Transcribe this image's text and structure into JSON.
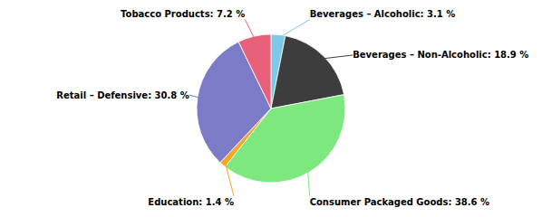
{
  "chart_data": {
    "type": "pie",
    "categories": [
      "Beverages – Alcoholic: 3.1 %",
      "Beverages – Non-Alcoholic: 18.9 %",
      "Consumer Packaged Goods: 38.6 %",
      "Education: 1.4 %",
      "Retail – Defensive: 30.8 %",
      "Tobacco Products: 7.2 %"
    ],
    "values": [
      3.1,
      18.9,
      38.6,
      1.4,
      30.8,
      7.2
    ],
    "colors": [
      "#7ec8e3",
      "#3d3d3d",
      "#7de87d",
      "#f5a623",
      "#7b7bc8",
      "#e8607a"
    ]
  }
}
